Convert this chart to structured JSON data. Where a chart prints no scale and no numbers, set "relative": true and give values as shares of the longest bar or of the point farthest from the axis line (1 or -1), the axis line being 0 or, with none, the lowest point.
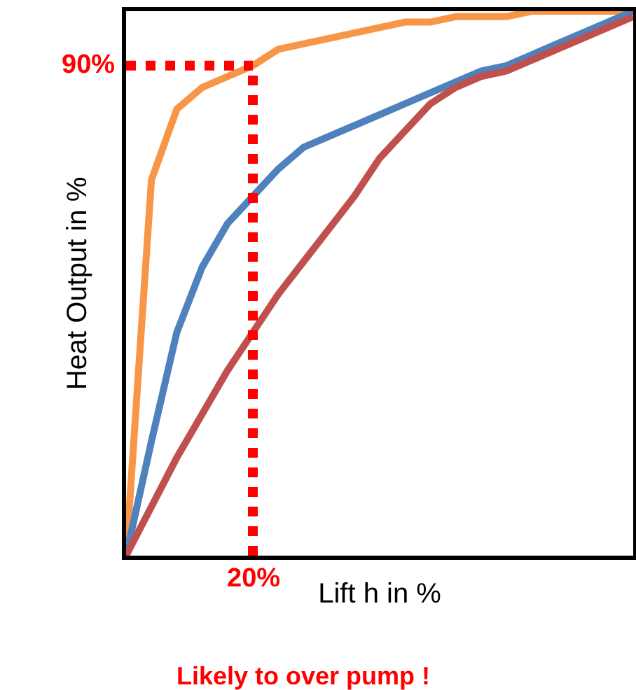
{
  "chart_data": {
    "type": "line",
    "relative": true,
    "xlabel": "Lift h in %",
    "ylabel": "Heat Output in %",
    "grid": false,
    "marker": "none",
    "line_style": "solid",
    "categories": [
      null,
      null,
      null,
      null,
      null,
      null,
      null,
      null,
      null,
      null,
      null,
      null,
      null,
      null,
      null,
      null,
      null,
      null,
      null,
      null,
      null
    ],
    "series": [
      {
        "color": "#f79646",
        "values": [
          0,
          0.69,
          0.82,
          0.86,
          0.88,
          0.9,
          0.93,
          0.94,
          0.95,
          0.96,
          0.97,
          0.98,
          0.98,
          0.99,
          0.99,
          0.99,
          1.0,
          1.0,
          1.0,
          1.0,
          1.0
        ]
      },
      {
        "color": "#4f81bd",
        "values": [
          0,
          0.21,
          0.41,
          0.53,
          0.61,
          0.66,
          0.71,
          0.75,
          0.77,
          0.79,
          0.81,
          0.83,
          0.85,
          0.87,
          0.89,
          0.9,
          0.92,
          0.94,
          0.96,
          0.98,
          1.0
        ]
      },
      {
        "color": "#c0504d",
        "values": [
          0,
          0.09,
          0.18,
          0.26,
          0.34,
          0.41,
          0.48,
          0.54,
          0.6,
          0.66,
          0.73,
          0.78,
          0.83,
          0.86,
          0.88,
          0.89,
          0.91,
          0.93,
          0.95,
          0.97,
          0.99
        ]
      }
    ],
    "ref_lines": [
      {
        "axis": "y",
        "value": 0.9,
        "label": "90%",
        "color": "#ff0000",
        "line_style": "dotted"
      }
    ],
    "annotations": [
      "20%",
      "Likely to over pump !"
    ]
  }
}
